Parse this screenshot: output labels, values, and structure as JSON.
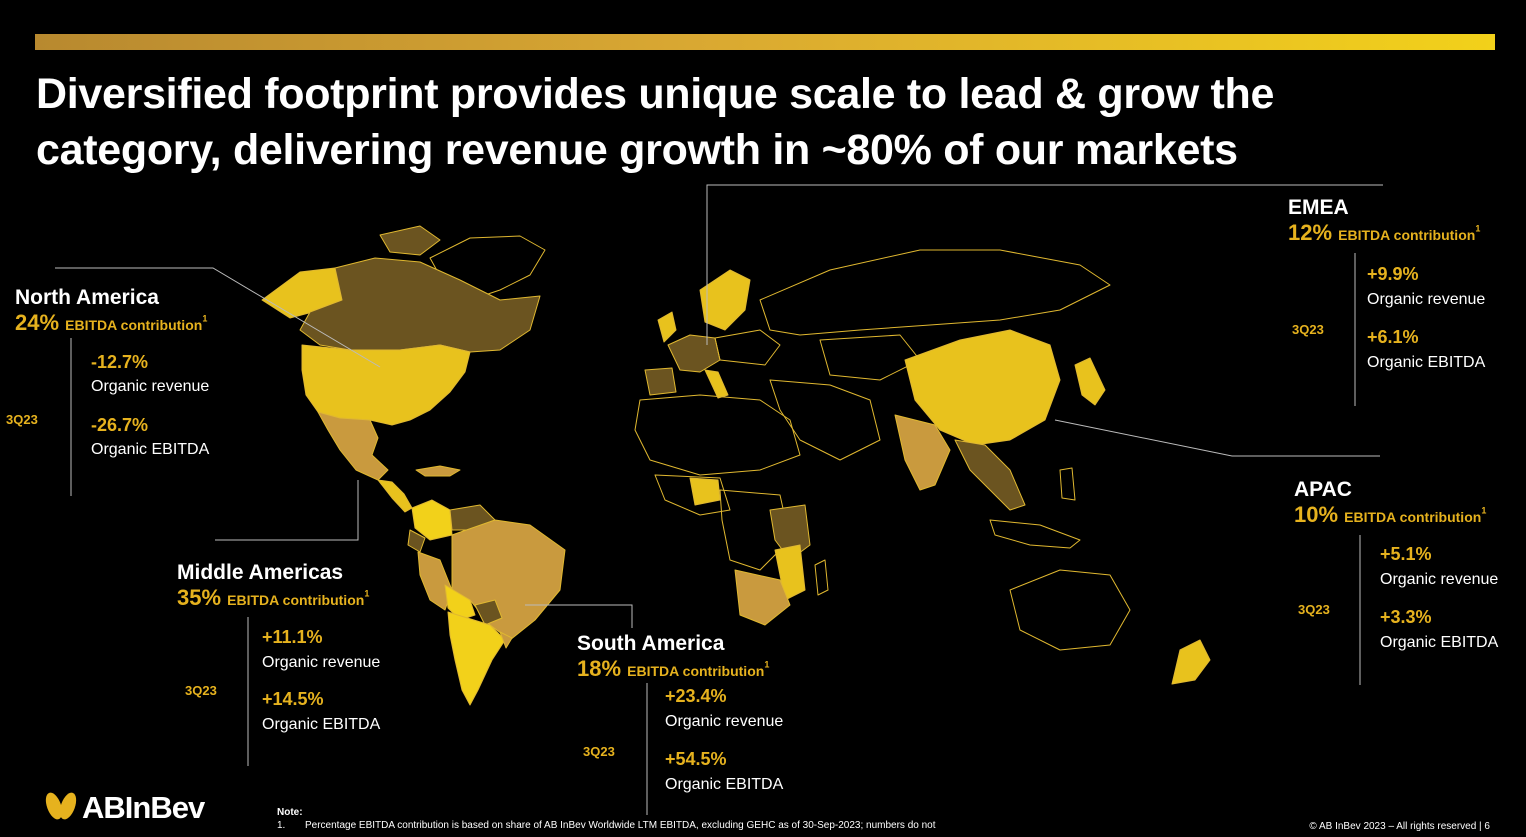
{
  "title": {
    "line1": "Diversified footprint provides unique scale to lead & grow the",
    "line2": "category, delivering revenue growth in ~80% of our markets"
  },
  "regions": {
    "north_america": {
      "name": "North America",
      "pct": "24%",
      "contrib": "EBITDA contribution",
      "sup": "1",
      "period": "3Q23",
      "revenue": "-12.7%",
      "revenue_label": "Organic revenue",
      "ebitda": "-26.7%",
      "ebitda_label": "Organic EBITDA"
    },
    "middle_americas": {
      "name": "Middle Americas",
      "pct": "35%",
      "contrib": "EBITDA contribution",
      "sup": "1",
      "period": "3Q23",
      "revenue": "+11.1%",
      "revenue_label": "Organic revenue",
      "ebitda": "+14.5%",
      "ebitda_label": "Organic EBITDA"
    },
    "south_america": {
      "name": "South America",
      "pct": "18%",
      "contrib": "EBITDA contribution",
      "sup": "1",
      "period": "3Q23",
      "revenue": "+23.4%",
      "revenue_label": "Organic revenue",
      "ebitda": "+54.5%",
      "ebitda_label": "Organic EBITDA"
    },
    "emea": {
      "name": "EMEA",
      "pct": "12%",
      "contrib": "EBITDA contribution",
      "sup": "1",
      "period": "3Q23",
      "revenue": "+9.9%",
      "revenue_label": "Organic revenue",
      "ebitda": "+6.1%",
      "ebitda_label": "Organic EBITDA"
    },
    "apac": {
      "name": "APAC",
      "pct": "10%",
      "contrib": "EBITDA contribution",
      "sup": "1",
      "period": "3Q23",
      "revenue": "+5.1%",
      "revenue_label": "Organic revenue",
      "ebitda": "+3.3%",
      "ebitda_label": "Organic EBITDA"
    }
  },
  "logo": {
    "text": "ABInBev"
  },
  "footnote": {
    "heading": "Note:",
    "number": "1.",
    "text": "Percentage EBITDA contribution is based on share of AB InBev Worldwide LTM EBITDA, excluding GEHC as of 30-Sep-2023; numbers do not"
  },
  "copyright": "© AB InBev 2023 – All rights reserved | 6",
  "colors": {
    "gold": "#e6b21e",
    "yellow": "#e8c21d",
    "tan": "#c99a3e",
    "olive": "#6b5420",
    "bright": "#f2d11a"
  }
}
